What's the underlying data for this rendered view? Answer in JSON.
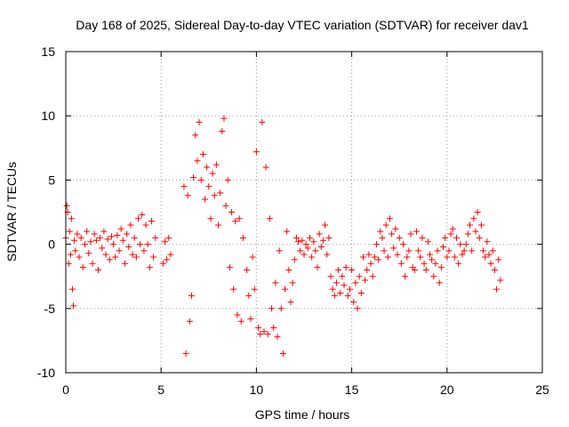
{
  "chart_data": {
    "type": "scatter",
    "title": "Day 168 of 2025, Sidereal Day-to-day VTEC variation (SDTVAR) for receiver dav1",
    "xlabel": "GPS time / hours",
    "ylabel": "SDTVAR / TECUs",
    "xlim": [
      0,
      25
    ],
    "ylim": [
      -10,
      15
    ],
    "xticks": [
      0,
      5,
      10,
      15,
      20,
      25
    ],
    "yticks": [
      -10,
      -5,
      0,
      5,
      10,
      15
    ],
    "xtick_labels": [
      "0",
      "5",
      "10",
      "15",
      "20",
      "25"
    ],
    "ytick_labels": [
      "-10",
      "-5",
      "0",
      "5",
      "10",
      "15"
    ],
    "grid": true,
    "marker": "+",
    "color": "#ff0000",
    "series": [
      {
        "name": "SDTVAR",
        "x": [
          0.0,
          0.05,
          0.1,
          0.15,
          0.2,
          0.25,
          0.3,
          0.35,
          0.4,
          0.45,
          0.5,
          0.6,
          0.7,
          0.8,
          0.9,
          1.0,
          1.1,
          1.2,
          1.3,
          1.4,
          1.5,
          1.6,
          1.7,
          1.8,
          1.9,
          2.0,
          2.1,
          2.2,
          2.3,
          2.4,
          2.5,
          2.6,
          2.7,
          2.8,
          2.9,
          3.0,
          3.1,
          3.2,
          3.3,
          3.4,
          3.5,
          3.6,
          3.7,
          3.8,
          3.9,
          4.0,
          4.1,
          4.2,
          4.3,
          4.4,
          4.5,
          4.6,
          4.7,
          5.1,
          5.2,
          5.3,
          5.4,
          5.5,
          6.2,
          6.3,
          6.4,
          6.5,
          6.6,
          6.7,
          6.8,
          6.9,
          7.0,
          7.1,
          7.2,
          7.3,
          7.4,
          7.5,
          7.6,
          7.7,
          7.8,
          7.9,
          8.0,
          8.1,
          8.2,
          8.3,
          8.4,
          8.5,
          8.6,
          8.7,
          8.8,
          8.9,
          9.0,
          9.1,
          9.2,
          9.3,
          9.5,
          9.6,
          9.7,
          9.8,
          9.9,
          10.0,
          10.1,
          10.2,
          10.3,
          10.4,
          10.5,
          10.6,
          10.7,
          10.8,
          10.9,
          11.0,
          11.1,
          11.2,
          11.3,
          11.4,
          11.5,
          11.6,
          11.7,
          11.8,
          11.9,
          12.0,
          12.1,
          12.2,
          12.3,
          12.4,
          12.5,
          12.6,
          12.7,
          12.8,
          12.9,
          13.0,
          13.1,
          13.2,
          13.3,
          13.4,
          13.5,
          13.6,
          13.7,
          13.8,
          13.9,
          14.0,
          14.1,
          14.2,
          14.3,
          14.4,
          14.5,
          14.6,
          14.7,
          14.8,
          14.9,
          15.0,
          15.1,
          15.2,
          15.3,
          15.4,
          15.5,
          15.6,
          15.7,
          15.8,
          15.9,
          16.0,
          16.1,
          16.2,
          16.3,
          16.4,
          16.5,
          16.6,
          16.7,
          16.8,
          16.9,
          17.0,
          17.1,
          17.2,
          17.3,
          17.4,
          17.5,
          17.6,
          17.7,
          17.8,
          17.9,
          18.0,
          18.1,
          18.2,
          18.3,
          18.4,
          18.5,
          18.6,
          18.7,
          18.8,
          18.9,
          19.0,
          19.1,
          19.2,
          19.3,
          19.4,
          19.5,
          19.6,
          19.7,
          19.8,
          19.9,
          20.0,
          20.1,
          20.2,
          20.3,
          20.4,
          20.5,
          20.6,
          20.7,
          20.8,
          20.9,
          21.0,
          21.1,
          21.2,
          21.3,
          21.4,
          21.5,
          21.6,
          21.7,
          21.8,
          21.9,
          22.0,
          22.1,
          22.2,
          22.3,
          22.4,
          22.5,
          22.6,
          22.7,
          22.8
        ],
        "y": [
          0.5,
          3.0,
          2.5,
          -1.5,
          1.0,
          -0.8,
          2.0,
          -3.5,
          -4.8,
          0.3,
          -0.5,
          0.8,
          -1.0,
          0.5,
          -1.8,
          0.0,
          1.0,
          -0.7,
          0.2,
          -1.5,
          0.8,
          0.3,
          -2.0,
          0.5,
          -0.3,
          1.0,
          -0.8,
          0.4,
          -1.2,
          0.6,
          0.0,
          -1.0,
          0.7,
          -0.5,
          1.2,
          0.3,
          -1.5,
          0.8,
          -0.2,
          1.5,
          -0.8,
          0.5,
          -1.0,
          2.0,
          0.0,
          2.3,
          -0.5,
          1.5,
          0.0,
          -1.8,
          1.8,
          -1.0,
          0.5,
          -1.5,
          0.2,
          -1.2,
          0.5,
          -0.8,
          4.5,
          -8.5,
          3.8,
          -6.0,
          -4.0,
          5.2,
          8.5,
          6.5,
          9.5,
          5.0,
          7.0,
          3.5,
          6.0,
          4.5,
          2.0,
          5.5,
          3.8,
          6.2,
          1.5,
          4.0,
          8.8,
          9.8,
          3.0,
          5.0,
          -1.8,
          2.5,
          -3.5,
          1.8,
          -5.5,
          2.0,
          -6.0,
          0.5,
          -2.0,
          -4.0,
          -5.8,
          -1.0,
          -3.5,
          7.2,
          -6.5,
          -7.0,
          9.5,
          -6.8,
          6.0,
          -7.0,
          2.0,
          -5.0,
          -6.5,
          -3.0,
          -7.2,
          -0.5,
          -5.0,
          -8.5,
          -3.5,
          1.0,
          -2.0,
          -4.5,
          -3.0,
          -1.2,
          0.5,
          0.2,
          -0.5,
          0.3,
          -0.8,
          0.0,
          -0.3,
          0.5,
          -1.0,
          0.2,
          -0.5,
          -1.8,
          0.8,
          -0.2,
          0.3,
          1.5,
          -0.8,
          0.5,
          -2.5,
          -3.5,
          -4.0,
          -3.0,
          -2.0,
          -3.8,
          -2.5,
          -3.2,
          -1.8,
          -4.0,
          -3.5,
          -2.0,
          -4.5,
          -3.0,
          -5.0,
          -2.5,
          -3.8,
          -1.0,
          -2.8,
          -2.0,
          -0.8,
          -1.5,
          -2.5,
          -1.0,
          0.0,
          -1.2,
          1.0,
          0.5,
          -0.5,
          1.5,
          -1.0,
          2.0,
          0.8,
          -0.3,
          1.2,
          -0.8,
          0.5,
          -1.5,
          0.0,
          -2.5,
          -1.0,
          -0.5,
          0.8,
          -1.8,
          -2.0,
          1.0,
          -0.5,
          -1.0,
          0.5,
          -1.5,
          -2.0,
          0.2,
          -0.8,
          -1.2,
          -2.5,
          -1.5,
          -0.5,
          -3.0,
          -1.8,
          -0.2,
          0.5,
          -1.0,
          -0.5,
          0.8,
          1.2,
          -1.0,
          0.5,
          -1.5,
          0.0,
          -0.8,
          -0.5,
          0.0,
          0.8,
          1.5,
          -0.5,
          2.0,
          1.0,
          2.5,
          0.5,
          1.5,
          -0.5,
          -1.0,
          0.2,
          -0.8,
          -1.5,
          -0.5,
          -2.0,
          -3.5,
          -1.2,
          -2.8
        ]
      }
    ]
  }
}
